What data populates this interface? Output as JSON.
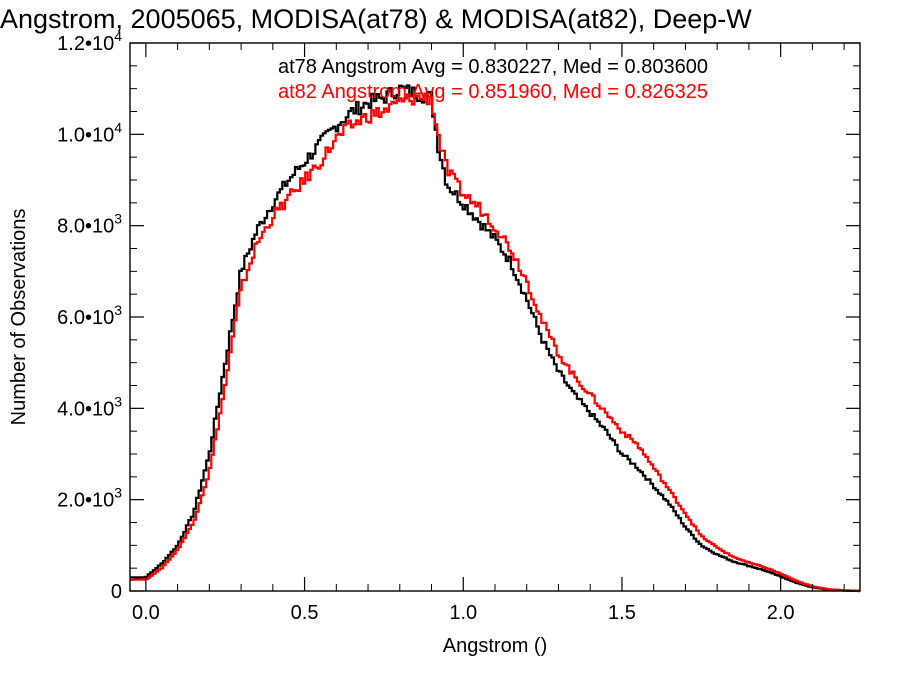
{
  "chart_data": {
    "type": "line",
    "title": "Angstrom, 2005065, MODISA(at78) & MODISA(at82), Deep-W",
    "xlabel": "Angstrom ()",
    "ylabel": "Number of Observations",
    "xlim": [
      -0.05,
      2.25
    ],
    "ylim": [
      0,
      12000
    ],
    "x_ticks": [
      {
        "value": 0.0,
        "label": "0.0"
      },
      {
        "value": 0.5,
        "label": "0.5"
      },
      {
        "value": 1.0,
        "label": "1.0"
      },
      {
        "value": 1.5,
        "label": "1.5"
      },
      {
        "value": 2.0,
        "label": "2.0"
      }
    ],
    "y_ticks": [
      {
        "value": 0,
        "mant": "0",
        "exp": ""
      },
      {
        "value": 2000,
        "mant": "2.0•10",
        "exp": "3"
      },
      {
        "value": 4000,
        "mant": "4.0•10",
        "exp": "3"
      },
      {
        "value": 6000,
        "mant": "6.0•10",
        "exp": "3"
      },
      {
        "value": 8000,
        "mant": "8.0•10",
        "exp": "3"
      },
      {
        "value": 10000,
        "mant": "1.0•10",
        "exp": "4"
      },
      {
        "value": 12000,
        "mant": "1.2•10",
        "exp": "4"
      }
    ],
    "grid": false,
    "legend_position": "top-right",
    "series": [
      {
        "legend": "at78 Angstrom Avg = 0.830227, Med = 0.803600",
        "color": "#000000",
        "x": [
          -0.05,
          0.0,
          0.05,
          0.1,
          0.15,
          0.2,
          0.25,
          0.28,
          0.3,
          0.35,
          0.4,
          0.45,
          0.5,
          0.55,
          0.6,
          0.65,
          0.7,
          0.75,
          0.8,
          0.85,
          0.9,
          0.92,
          0.95,
          1.0,
          1.05,
          1.1,
          1.15,
          1.2,
          1.25,
          1.3,
          1.35,
          1.4,
          1.45,
          1.5,
          1.55,
          1.6,
          1.65,
          1.7,
          1.75,
          1.8,
          1.85,
          1.9,
          1.95,
          2.0,
          2.05,
          2.1,
          2.15,
          2.2,
          2.25
        ],
        "y": [
          300,
          300,
          600,
          1000,
          1700,
          3000,
          5000,
          6200,
          7000,
          7900,
          8500,
          9000,
          9400,
          9800,
          10200,
          10500,
          10700,
          10800,
          11000,
          10900,
          10800,
          9800,
          8900,
          8500,
          8100,
          7700,
          7200,
          6400,
          5500,
          4800,
          4300,
          3900,
          3500,
          3000,
          2700,
          2300,
          1900,
          1400,
          1000,
          800,
          650,
          550,
          450,
          320,
          180,
          80,
          30,
          10,
          0
        ]
      },
      {
        "legend": "at82 Angstrom Avg = 0.851960, Med = 0.826325",
        "color": "#ff0000",
        "x": [
          -0.05,
          0.0,
          0.05,
          0.1,
          0.15,
          0.2,
          0.25,
          0.28,
          0.3,
          0.35,
          0.4,
          0.45,
          0.5,
          0.55,
          0.6,
          0.65,
          0.7,
          0.75,
          0.8,
          0.85,
          0.9,
          0.92,
          0.95,
          1.0,
          1.05,
          1.1,
          1.15,
          1.2,
          1.25,
          1.3,
          1.35,
          1.4,
          1.45,
          1.5,
          1.55,
          1.6,
          1.65,
          1.7,
          1.75,
          1.8,
          1.85,
          1.9,
          1.95,
          2.0,
          2.05,
          2.1,
          2.15,
          2.2,
          2.25
        ],
        "y": [
          250,
          250,
          500,
          900,
          1500,
          2600,
          4500,
          5800,
          6600,
          7600,
          8200,
          8600,
          9000,
          9400,
          9900,
          10200,
          10400,
          10500,
          10700,
          10800,
          10800,
          10000,
          9200,
          8700,
          8400,
          8000,
          7500,
          6800,
          5900,
          5200,
          4700,
          4300,
          3900,
          3500,
          3200,
          2700,
          2200,
          1700,
          1200,
          950,
          750,
          620,
          520,
          380,
          220,
          100,
          40,
          15,
          0
        ]
      }
    ]
  }
}
